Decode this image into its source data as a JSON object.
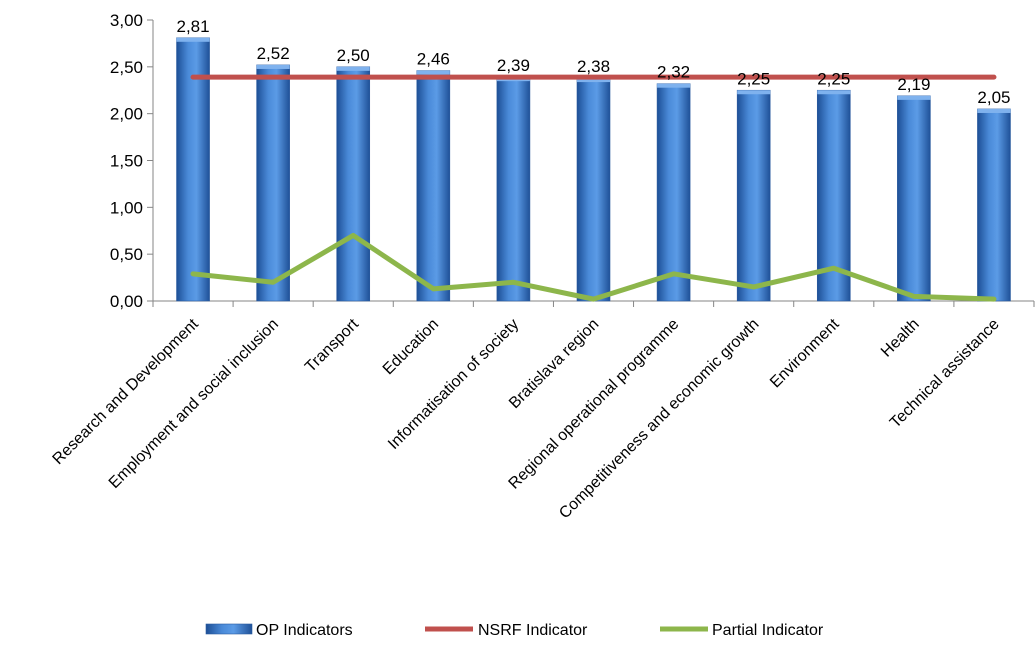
{
  "chart_data": {
    "type": "bar",
    "categories": [
      "Research and Development",
      "Employment and social inclusion",
      "Transport",
      "Education",
      "Informatisation of society",
      "Bratislava region",
      "Regional operational programme",
      "Competitiveness and economic growth",
      "Environment",
      "Health",
      "Technical assistance"
    ],
    "series": [
      {
        "name": "OP Indicators",
        "kind": "bar",
        "color": "#3d76c5",
        "values": [
          2.81,
          2.52,
          2.5,
          2.46,
          2.39,
          2.38,
          2.32,
          2.25,
          2.25,
          2.19,
          2.05
        ],
        "labels": [
          "2,81",
          "2,52",
          "2,50",
          "2,46",
          "2,39",
          "2,38",
          "2,32",
          "2,25",
          "2,25",
          "2,19",
          "2,05"
        ]
      },
      {
        "name": "NSRF Indicator",
        "kind": "line",
        "color": "#c0504d",
        "values": [
          2.39,
          2.39,
          2.39,
          2.39,
          2.39,
          2.39,
          2.39,
          2.39,
          2.39,
          2.39,
          2.39
        ]
      },
      {
        "name": "Partial Indicator",
        "kind": "line",
        "color": "#8db64b",
        "values": [
          0.29,
          0.2,
          0.7,
          0.13,
          0.2,
          0.02,
          0.29,
          0.15,
          0.35,
          0.05,
          0.02
        ]
      }
    ],
    "yticks": [
      0,
      0.5,
      1,
      1.5,
      2,
      2.5,
      3
    ],
    "ytick_labels": [
      "0,00",
      "0,50",
      "1,00",
      "1,50",
      "2,00",
      "2,50",
      "3,00"
    ],
    "ylim": [
      0,
      3
    ],
    "grid": false,
    "legend_position": "bottom",
    "title": "",
    "xlabel": "",
    "ylabel": ""
  }
}
